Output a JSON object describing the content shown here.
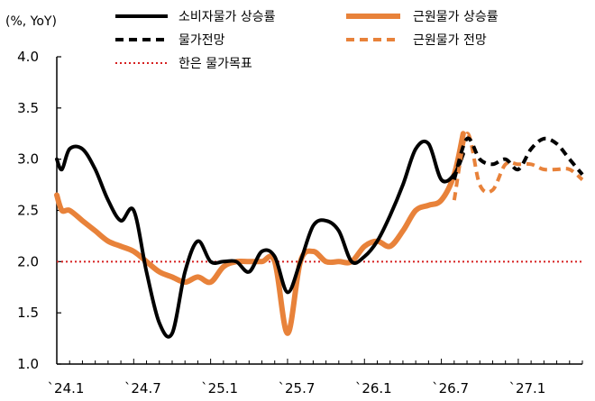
{
  "chart_data": {
    "type": "line",
    "unit_label": "(%, YoY)",
    "y_ticks": [
      "4.0",
      "3.5",
      "3.0",
      "2.5",
      "2.0",
      "1.5",
      "1.0"
    ],
    "y_tick_values": [
      4.0,
      3.5,
      3.0,
      2.5,
      2.0,
      1.5,
      1.0
    ],
    "ylim": [
      1.0,
      4.0
    ],
    "x_ticks": [
      "`24.1",
      "`24.7",
      "`25.1",
      "`25.7",
      "`26.1",
      "`26.7",
      "`27.1"
    ],
    "x_tick_values": [
      0,
      6,
      12,
      18,
      24,
      30,
      36
    ],
    "xlim": [
      0,
      41
    ],
    "x_unit": "months since `24.1",
    "legend": {
      "placement": "top",
      "items": [
        {
          "label": "소비자물가 상승률",
          "key": "cpi"
        },
        {
          "label": "근원물가 상승률",
          "key": "core"
        },
        {
          "label": "물가전망",
          "key": "cpi_fc"
        },
        {
          "label": "근원물가 전망",
          "key": "core_fc"
        },
        {
          "label": "한은 물가목표",
          "key": "target"
        }
      ]
    },
    "colors": {
      "cpi": "#000000",
      "core": "#e8823a",
      "target": "#d62020"
    },
    "target_value": 2.0,
    "series": [
      {
        "name": "소비자물가 상승률",
        "key": "cpi",
        "style": "solid",
        "x": [
          0,
          0.4,
          1,
          2,
          3,
          4,
          5,
          6,
          7,
          8,
          9,
          10,
          11,
          12,
          13,
          14,
          15,
          16,
          17,
          18,
          19,
          20,
          21,
          22,
          23,
          24,
          25,
          26,
          27,
          28,
          29,
          30,
          31,
          31.7
        ],
        "values": [
          3.0,
          2.9,
          3.1,
          3.1,
          2.9,
          2.6,
          2.4,
          2.5,
          1.9,
          1.4,
          1.3,
          1.9,
          2.2,
          2.0,
          2.0,
          2.0,
          1.9,
          2.1,
          2.05,
          1.7,
          2.0,
          2.35,
          2.4,
          2.3,
          2.0,
          2.05,
          2.2,
          2.45,
          2.75,
          3.1,
          3.15,
          2.8,
          2.85,
          3.05
        ]
      },
      {
        "name": "근원물가 상승률",
        "key": "core",
        "style": "solid",
        "x": [
          0,
          0.4,
          1,
          2,
          3,
          4,
          5,
          6,
          7,
          8,
          9,
          10,
          11,
          12,
          13,
          14,
          15,
          16,
          17,
          18,
          19,
          20,
          21,
          22,
          23,
          24,
          25,
          26,
          27,
          28,
          29,
          30,
          31,
          31.7
        ],
        "values": [
          2.65,
          2.5,
          2.5,
          2.4,
          2.3,
          2.2,
          2.15,
          2.1,
          2.0,
          1.9,
          1.85,
          1.8,
          1.85,
          1.8,
          1.95,
          2.0,
          2.0,
          2.0,
          2.0,
          1.3,
          2.0,
          2.1,
          2.0,
          2.0,
          2.0,
          2.15,
          2.2,
          2.15,
          2.3,
          2.5,
          2.55,
          2.6,
          2.85,
          3.25
        ]
      },
      {
        "name": "물가전망",
        "key": "cpi_fc",
        "style": "dashed",
        "x": [
          31,
          32,
          33,
          34,
          35,
          36,
          37,
          38,
          39,
          40,
          41
        ],
        "values": [
          2.8,
          3.2,
          3.0,
          2.95,
          3.0,
          2.9,
          3.1,
          3.2,
          3.15,
          3.0,
          2.85
        ]
      },
      {
        "name": "근원물가 전망",
        "key": "core_fc",
        "style": "dashed",
        "x": [
          31,
          32,
          33,
          34,
          35,
          36,
          37,
          38,
          39,
          40,
          41
        ],
        "values": [
          2.6,
          3.25,
          2.75,
          2.7,
          2.95,
          2.95,
          2.95,
          2.9,
          2.9,
          2.9,
          2.8
        ]
      }
    ]
  }
}
